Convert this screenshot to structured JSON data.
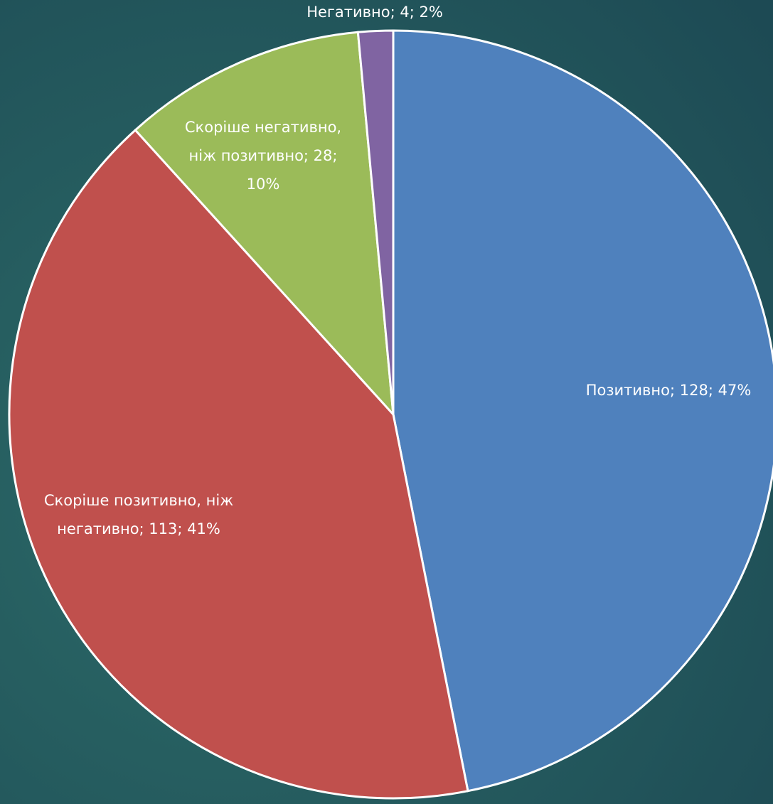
{
  "chart_data": {
    "type": "pie",
    "values": [
      128,
      113,
      28,
      4
    ],
    "value_labels": [
      [
        "Позитивно; 128; 47%"
      ],
      [
        "Скоріше позитивно, ніж",
        "негативно; 113; 41%"
      ],
      [
        "Скоріше негативно,",
        "ніж позитивно; 28;",
        "10%"
      ],
      [
        "Негативно; 4; 2%"
      ]
    ],
    "colors": [
      "#4f81bd",
      "#c0504d",
      "#9bbb59",
      "#8064a2"
    ],
    "start_angle": 90,
    "direction": "clockwise"
  }
}
